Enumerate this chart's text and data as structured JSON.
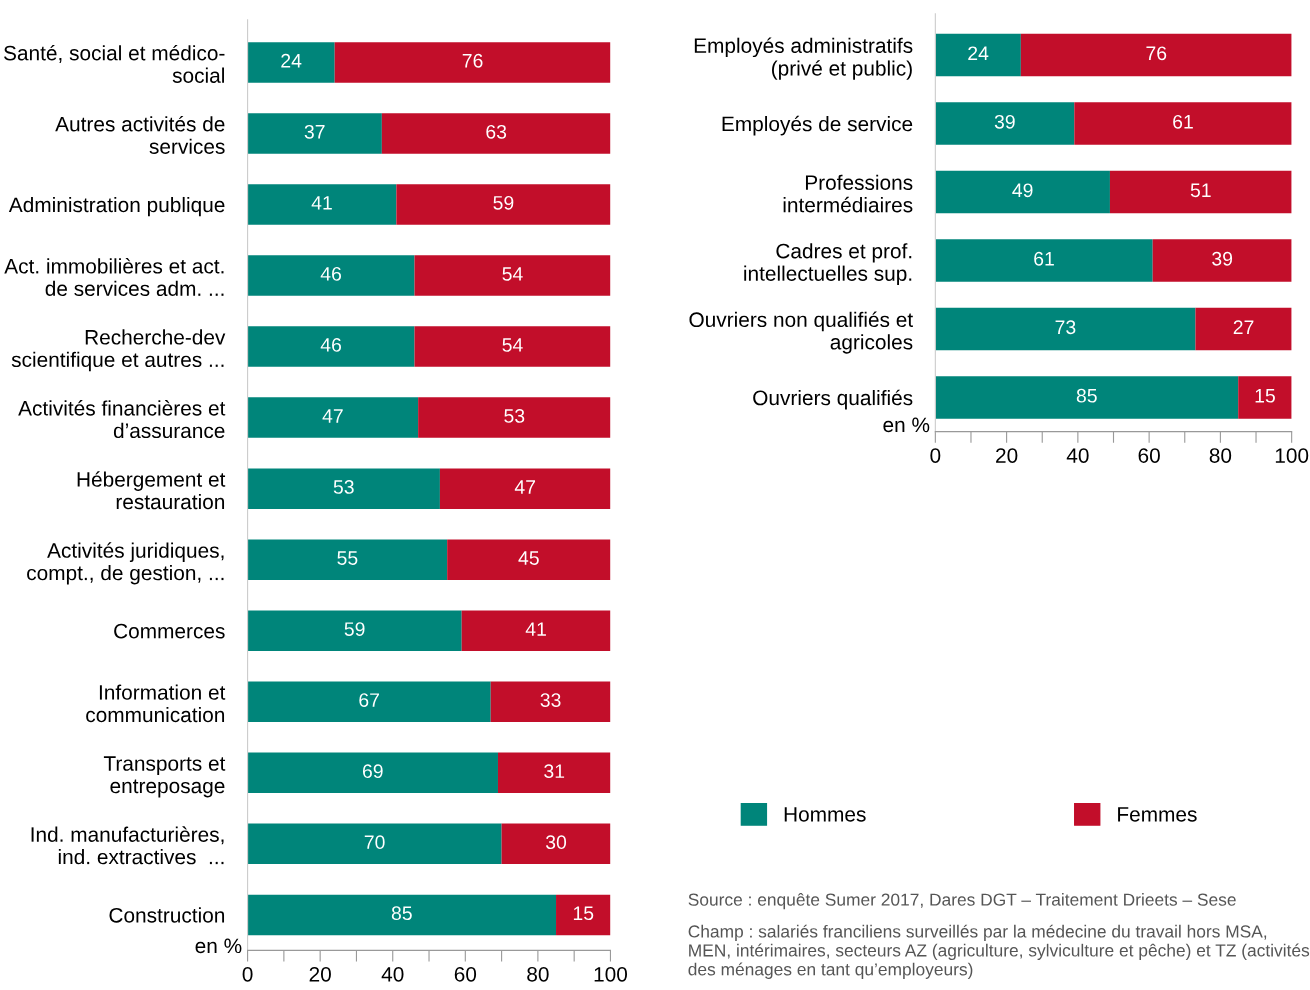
{
  "chart_data": [
    {
      "type": "bar",
      "orientation": "horizontal",
      "stacked": true,
      "data_labels": true,
      "grid": false,
      "legend": false,
      "xlabel": "en %",
      "categories": [
        "Santé, social et médico-\nsocial",
        "Autres activités de\nservices",
        "Administration publique",
        "Act. immobilières et act.\nde services adm. ...",
        "Recherche-dev\nscientifique et autres ...",
        "Activités financières et\nd’assurance",
        "Hébergement et\nrestauration",
        "Activités juridiques,\ncompt., de gestion, ...",
        "Commerces",
        "Information et\ncommunication",
        "Transports et\nentreposage",
        "Ind. manufacturières,\nind. extractives  ...",
        "Construction"
      ],
      "xlim": [
        0,
        100
      ],
      "xticks": [
        0,
        {
          "value": 10,
          "label": null
        },
        20,
        {
          "value": 30,
          "label": null
        },
        40,
        {
          "value": 50,
          "label": null
        },
        60,
        {
          "value": 70,
          "label": null
        },
        80,
        {
          "value": 90,
          "label": null
        },
        100
      ],
      "series": [
        {
          "color": "#00857a",
          "values": [
            24,
            37,
            41,
            46,
            46,
            47,
            53,
            55,
            59,
            67,
            69,
            70,
            85
          ]
        },
        {
          "color": "#c20e2a",
          "values": [
            76,
            63,
            59,
            54,
            54,
            53,
            47,
            45,
            41,
            33,
            31,
            30,
            15
          ]
        }
      ]
    },
    {
      "type": "bar",
      "orientation": "horizontal",
      "stacked": true,
      "data_labels": true,
      "grid": false,
      "legend": "bottom",
      "xlabel": "en %",
      "categories": [
        "Employés administratifs\n(privé et public)",
        "Employés de service",
        "Professions\nintermédiaires",
        "Cadres et prof.\nintellectuelles sup.",
        "Ouvriers non qualifiés et\nagricoles",
        "Ouvriers qualifiés"
      ],
      "xlim": [
        0,
        100
      ],
      "xticks": [
        0,
        {
          "value": 10,
          "label": null
        },
        20,
        {
          "value": 30,
          "label": null
        },
        40,
        {
          "value": 50,
          "label": null
        },
        60,
        {
          "value": 70,
          "label": null
        },
        80,
        {
          "value": 90,
          "label": null
        },
        100
      ],
      "series": [
        {
          "name": "Hommes",
          "color": "#00857a",
          "values": [
            24,
            39,
            49,
            61,
            73,
            85
          ]
        },
        {
          "name": "Femmes",
          "color": "#c20e2a",
          "values": [
            76,
            61,
            51,
            39,
            27,
            15
          ]
        }
      ],
      "annotations": [
        "Source : enquête Sumer 2017, Dares DGT – Traitement Drieets – Sese",
        "Champ : salariés franciliens surveillés par la médecine du travail hors MSA, MEN, intérimaires, secteurs AZ (agriculture, sylviculture et pêche) et TZ (activités des ménages en tant qu’employeurs)"
      ]
    }
  ]
}
